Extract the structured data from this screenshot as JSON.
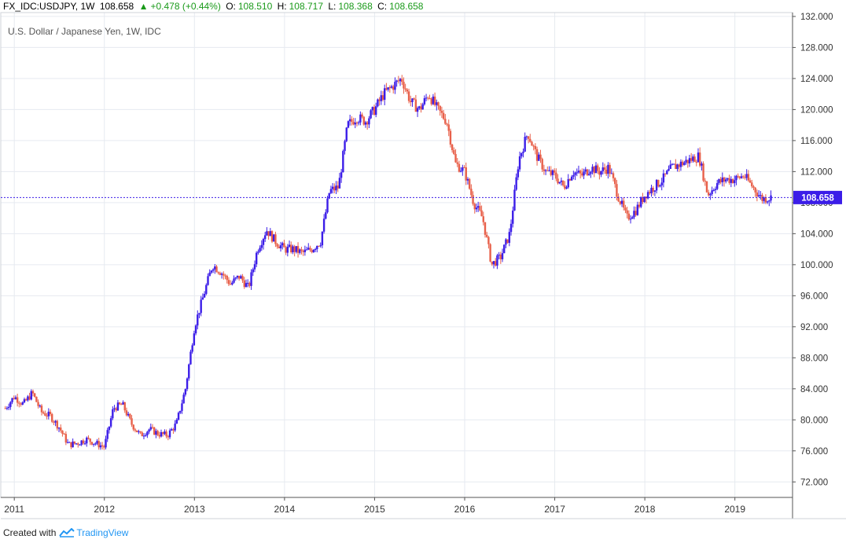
{
  "header": {
    "symbol": "FX_IDC:USDJPY, 1W",
    "last": "108.658",
    "change": "+0.478 (+0.44%)",
    "open_label": "O:",
    "open": "108.510",
    "high_label": "H:",
    "high": "108.717",
    "low_label": "L:",
    "low": "108.368",
    "close_label": "C:",
    "close": "108.658"
  },
  "footer": {
    "created_with": "Created with",
    "brand": "TradingView"
  },
  "colors": {
    "up": "#3b1de8",
    "down": "#e8604a",
    "price_line": "#3b1de8",
    "grid": "#e6eaf0"
  },
  "chart_data": {
    "type": "candlestick",
    "title": "U.S. Dollar / Japanese Yen, 1W, IDC",
    "x_ticks": [
      "2011",
      "2012",
      "2013",
      "2014",
      "2015",
      "2016",
      "2017",
      "2018",
      "2019"
    ],
    "y_ticks": [
      "72.000",
      "76.000",
      "80.000",
      "84.000",
      "88.000",
      "92.000",
      "96.000",
      "100.000",
      "104.000",
      "108.000",
      "112.000",
      "116.000",
      "120.000",
      "124.000",
      "128.000",
      "132.000"
    ],
    "ylim": [
      70,
      132.5
    ],
    "xlim": [
      2010.85,
      2019.64
    ],
    "last_price": 108.658,
    "last_price_label": "108.658",
    "grid": true,
    "series": [
      {
        "x": [
          2010.9,
          2011.0,
          2011.1,
          2011.2,
          2011.3,
          2011.4,
          2011.5,
          2011.6,
          2011.7,
          2011.8,
          2011.9,
          2012.0,
          2012.1,
          2012.2,
          2012.3,
          2012.4,
          2012.5,
          2012.6,
          2012.7,
          2012.8,
          2012.9,
          2013.0,
          2013.1,
          2013.2,
          2013.3,
          2013.4,
          2013.5,
          2013.6,
          2013.7,
          2013.8,
          2013.9,
          2014.0,
          2014.1,
          2014.2,
          2014.3,
          2014.4,
          2014.5,
          2014.6,
          2014.7,
          2014.8,
          2014.9,
          2015.0,
          2015.1,
          2015.2,
          2015.3,
          2015.4,
          2015.5,
          2015.6,
          2015.7,
          2015.8,
          2015.9,
          2016.0,
          2016.1,
          2016.2,
          2016.3,
          2016.4,
          2016.5,
          2016.6,
          2016.7,
          2016.8,
          2016.9,
          2017.0,
          2017.1,
          2017.2,
          2017.3,
          2017.4,
          2017.5,
          2017.6,
          2017.7,
          2017.8,
          2017.9,
          2018.0,
          2018.1,
          2018.2,
          2018.3,
          2018.4,
          2018.5,
          2018.6,
          2018.7,
          2018.8,
          2018.9,
          2019.0,
          2019.1,
          2019.2,
          2019.3,
          2019.4
        ],
        "close": [
          81.5,
          83.0,
          82.0,
          83.5,
          81.0,
          80.5,
          79.0,
          76.8,
          77.0,
          77.5,
          77.0,
          76.5,
          81.5,
          82.0,
          79.5,
          78.0,
          78.8,
          78.2,
          78.0,
          79.5,
          84.0,
          92.0,
          96.0,
          100.0,
          99.0,
          97.5,
          98.5,
          97.0,
          102.0,
          104.5,
          103.0,
          102.0,
          102.0,
          101.5,
          102.0,
          103.0,
          109.5,
          110.0,
          118.0,
          119.0,
          118.5,
          120.0,
          122.0,
          123.0,
          124.0,
          121.0,
          120.0,
          122.0,
          120.0,
          118.5,
          113.0,
          112.0,
          108.0,
          106.0,
          100.0,
          101.0,
          104.0,
          113.5,
          117.0,
          114.0,
          112.0,
          111.5,
          110.0,
          112.0,
          111.5,
          112.5,
          112.0,
          112.5,
          109.0,
          106.0,
          107.0,
          109.0,
          110.0,
          111.0,
          112.5,
          113.0,
          113.5,
          114.0,
          109.0,
          110.5,
          111.0,
          111.0,
          111.5,
          110.0,
          108.5,
          108.658
        ]
      }
    ]
  }
}
